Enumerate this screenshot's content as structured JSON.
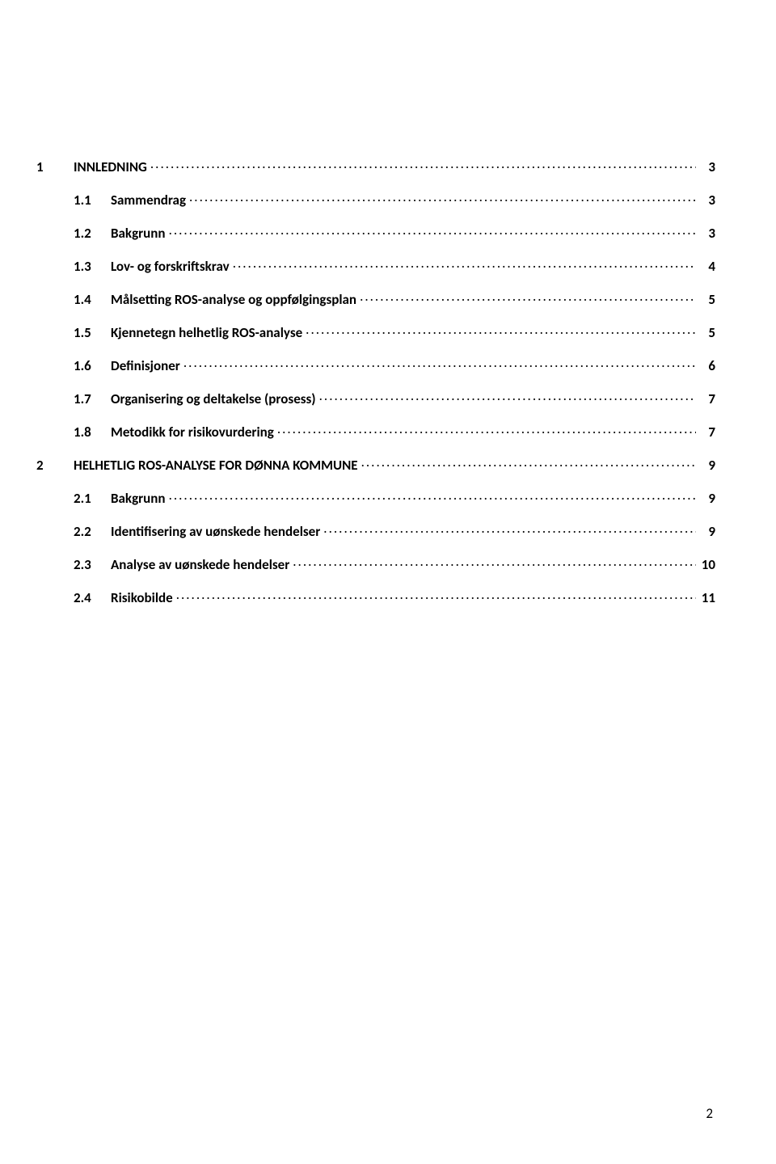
{
  "toc": [
    {
      "level": 1,
      "num": "1",
      "text": "INNLEDNING",
      "page": "3"
    },
    {
      "level": 2,
      "num": "1.1",
      "text": "Sammendrag",
      "page": "3"
    },
    {
      "level": 2,
      "num": "1.2",
      "text": "Bakgrunn",
      "page": "3"
    },
    {
      "level": 2,
      "num": "1.3",
      "text": "Lov- og forskriftskrav",
      "page": "4"
    },
    {
      "level": 2,
      "num": "1.4",
      "text": "Målsetting ROS-analyse og oppfølgingsplan",
      "page": "5"
    },
    {
      "level": 2,
      "num": "1.5",
      "text": "Kjennetegn helhetlig ROS-analyse",
      "page": "5"
    },
    {
      "level": 2,
      "num": "1.6",
      "text": "Definisjoner",
      "page": "6"
    },
    {
      "level": 2,
      "num": "1.7",
      "text": "Organisering og deltakelse (prosess)",
      "page": "7"
    },
    {
      "level": 2,
      "num": "1.8",
      "text": "Metodikk for risikovurdering",
      "page": "7"
    },
    {
      "level": 1,
      "num": "2",
      "text": "HELHETLIG ROS-ANALYSE FOR DØNNA KOMMUNE",
      "page": "9"
    },
    {
      "level": 2,
      "num": "2.1",
      "text": "Bakgrunn",
      "page": "9"
    },
    {
      "level": 2,
      "num": "2.2",
      "text": "Identifisering av uønskede hendelser",
      "page": "9"
    },
    {
      "level": 2,
      "num": "2.3",
      "text": "Analyse av uønskede hendelser",
      "page": "10"
    },
    {
      "level": 2,
      "num": "2.4",
      "text": "Risikobilde",
      "page": "11"
    }
  ],
  "page_number": "2",
  "style": {
    "font_family": "Calibri, Arial, sans-serif",
    "font_size_pt": 12,
    "text_color": "#000000",
    "background_color": "#ffffff",
    "leader_char": ".",
    "level1_bold": true,
    "level2_bold_num_text": true
  }
}
